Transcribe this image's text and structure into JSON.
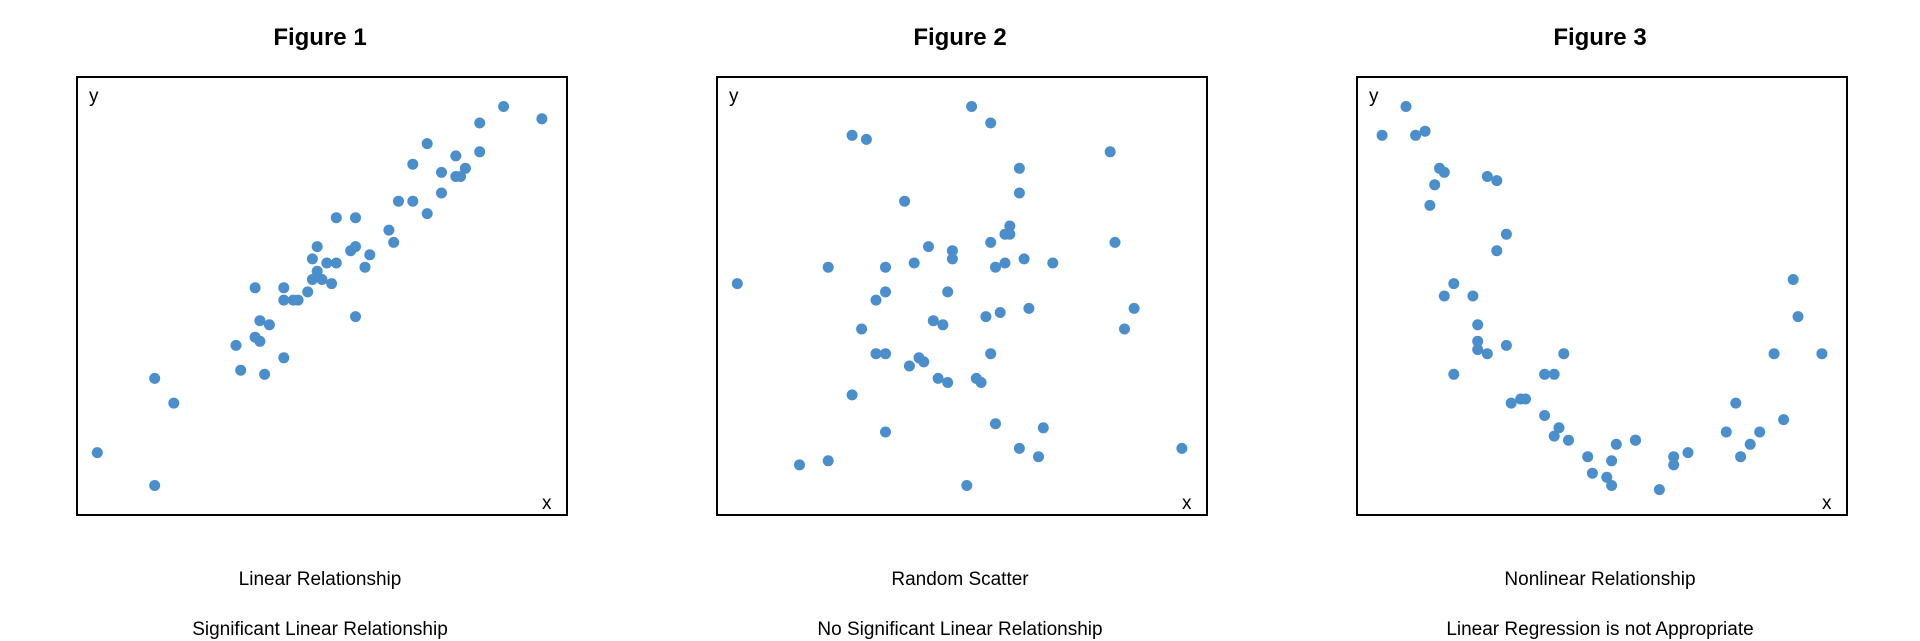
{
  "chart_data": [
    {
      "type": "scatter",
      "title": "Figure 1",
      "xlabel": "x",
      "ylabel": "y",
      "caption": "Linear Relationship",
      "subcaption": "Significant Linear Relationship",
      "color": "#4a8fcc",
      "xlim": [
        0,
        100
      ],
      "ylim": [
        0,
        100
      ],
      "grid": false,
      "legend": "none",
      "points": [
        [
          3,
          12
        ],
        [
          15,
          4
        ],
        [
          15,
          30
        ],
        [
          19,
          24
        ],
        [
          32,
          38
        ],
        [
          33,
          32
        ],
        [
          36,
          40
        ],
        [
          37,
          39
        ],
        [
          37,
          44
        ],
        [
          38,
          31
        ],
        [
          39,
          43
        ],
        [
          42,
          35
        ],
        [
          36,
          52
        ],
        [
          42,
          52
        ],
        [
          42,
          49
        ],
        [
          44,
          49
        ],
        [
          45,
          49
        ],
        [
          47,
          51
        ],
        [
          48,
          54
        ],
        [
          48,
          59
        ],
        [
          49,
          56
        ],
        [
          49,
          62
        ],
        [
          50,
          54
        ],
        [
          51,
          58
        ],
        [
          52,
          53
        ],
        [
          53,
          58
        ],
        [
          53,
          69
        ],
        [
          56,
          61
        ],
        [
          57,
          45
        ],
        [
          57,
          62
        ],
        [
          57,
          69
        ],
        [
          59,
          57
        ],
        [
          60,
          60
        ],
        [
          64,
          66
        ],
        [
          65,
          63
        ],
        [
          66,
          73
        ],
        [
          69,
          73
        ],
        [
          69,
          82
        ],
        [
          72,
          87
        ],
        [
          72,
          70
        ],
        [
          75,
          80
        ],
        [
          75,
          75
        ],
        [
          78,
          79
        ],
        [
          78,
          84
        ],
        [
          79,
          79
        ],
        [
          80,
          81
        ],
        [
          83,
          85
        ],
        [
          83,
          92
        ],
        [
          88,
          96
        ],
        [
          96,
          93
        ]
      ]
    },
    {
      "type": "scatter",
      "title": "Figure 2",
      "xlabel": "x",
      "ylabel": "y",
      "caption": "Random Scatter",
      "subcaption": "No Significant Linear Relationship",
      "color": "#4a8fcc",
      "xlim": [
        0,
        100
      ],
      "ylim": [
        0,
        100
      ],
      "grid": false,
      "legend": "none",
      "points": [
        [
          3,
          53
        ],
        [
          16,
          9
        ],
        [
          22,
          10
        ],
        [
          22,
          57
        ],
        [
          27,
          26
        ],
        [
          27,
          89
        ],
        [
          30,
          88
        ],
        [
          34,
          57
        ],
        [
          34,
          17
        ],
        [
          29,
          42
        ],
        [
          32,
          49
        ],
        [
          34,
          51
        ],
        [
          34,
          36
        ],
        [
          32,
          36
        ],
        [
          38,
          73
        ],
        [
          39,
          33
        ],
        [
          40,
          58
        ],
        [
          44,
          44
        ],
        [
          41,
          35
        ],
        [
          42,
          34
        ],
        [
          43,
          62
        ],
        [
          45,
          30
        ],
        [
          47,
          29
        ],
        [
          46,
          43
        ],
        [
          47,
          51
        ],
        [
          48,
          59
        ],
        [
          48,
          61
        ],
        [
          51,
          4
        ],
        [
          52,
          96
        ],
        [
          53,
          30
        ],
        [
          54,
          29
        ],
        [
          56,
          63
        ],
        [
          56,
          92
        ],
        [
          55,
          45
        ],
        [
          57,
          19
        ],
        [
          58,
          46
        ],
        [
          56,
          36
        ],
        [
          57,
          57
        ],
        [
          59,
          65
        ],
        [
          59,
          58
        ],
        [
          60,
          67
        ],
        [
          63,
          59
        ],
        [
          60,
          65
        ],
        [
          62,
          75
        ],
        [
          62,
          81
        ],
        [
          64,
          47
        ],
        [
          66,
          11
        ],
        [
          69,
          58
        ],
        [
          81,
          85
        ],
        [
          82,
          63
        ],
        [
          84,
          42
        ],
        [
          86,
          47
        ],
        [
          96,
          13
        ],
        [
          62,
          13
        ],
        [
          67,
          18
        ]
      ]
    },
    {
      "type": "scatter",
      "title": "Figure 3",
      "xlabel": "x",
      "ylabel": "y",
      "caption": "Nonlinear Relationship",
      "subcaption": "Linear Regression is not Appropriate",
      "color": "#4a8fcc",
      "xlim": [
        0,
        100
      ],
      "ylim": [
        0,
        100
      ],
      "grid": false,
      "legend": "none",
      "points": [
        [
          4,
          89
        ],
        [
          9,
          96
        ],
        [
          11,
          89
        ],
        [
          13,
          90
        ],
        [
          15,
          77
        ],
        [
          14,
          72
        ],
        [
          16,
          81
        ],
        [
          17,
          80
        ],
        [
          17,
          50
        ],
        [
          19,
          53
        ],
        [
          19,
          31
        ],
        [
          23,
          50
        ],
        [
          24,
          43
        ],
        [
          24,
          39
        ],
        [
          24,
          37
        ],
        [
          26,
          36
        ],
        [
          26,
          79
        ],
        [
          28,
          78
        ],
        [
          28,
          61
        ],
        [
          30,
          65
        ],
        [
          30,
          38
        ],
        [
          31,
          24
        ],
        [
          33,
          25
        ],
        [
          34,
          25
        ],
        [
          38,
          31
        ],
        [
          40,
          31
        ],
        [
          38,
          21
        ],
        [
          40,
          16
        ],
        [
          41,
          18
        ],
        [
          42,
          36
        ],
        [
          43,
          15
        ],
        [
          47,
          11
        ],
        [
          48,
          7
        ],
        [
          51,
          6
        ],
        [
          52,
          10
        ],
        [
          53,
          14
        ],
        [
          52,
          4
        ],
        [
          57,
          15
        ],
        [
          57,
          15
        ],
        [
          62,
          3
        ],
        [
          65,
          9
        ],
        [
          65,
          11
        ],
        [
          68,
          12
        ],
        [
          76,
          17
        ],
        [
          78,
          24
        ],
        [
          79,
          11
        ],
        [
          81,
          14
        ],
        [
          83,
          17
        ],
        [
          86,
          36
        ],
        [
          88,
          20
        ],
        [
          90,
          54
        ],
        [
          91,
          45
        ],
        [
          96,
          36
        ]
      ]
    }
  ]
}
